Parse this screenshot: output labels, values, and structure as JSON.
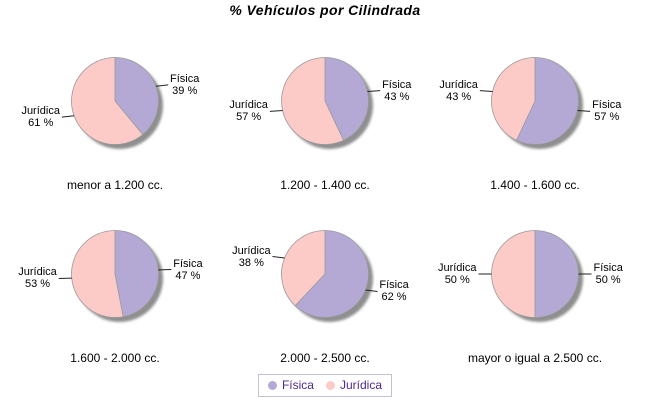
{
  "chart_data": {
    "type": "pie",
    "title": "% Vehículos por Cilindrada",
    "layout": {
      "rows": 2,
      "cols": 3,
      "legend_position": "bottom-center",
      "grid": false
    },
    "value_suffix": " %",
    "series": [
      {
        "name": "Física",
        "key": "fisica",
        "color": "#b4a9d4"
      },
      {
        "name": "Jurídica",
        "key": "juridica",
        "color": "#fccbc8"
      }
    ],
    "shadow_color": "#8f8f8f",
    "outline_color": "#9a9a9a",
    "leader_line_color": "#222222",
    "label_text_color": "#000000",
    "legend_text_color": "#4c2a8e",
    "legend_border_color": "#c2c2cc",
    "pies": [
      {
        "category": "menor a 1.200 cc.",
        "values": [
          39,
          61
        ]
      },
      {
        "category": "1.200 - 1.400 cc.",
        "values": [
          43,
          57
        ]
      },
      {
        "category": "1.400 - 1.600 cc.",
        "values": [
          57,
          43
        ]
      },
      {
        "category": "1.600 - 2.000 cc.",
        "values": [
          47,
          53
        ]
      },
      {
        "category": "2.000 - 2.500 cc.",
        "values": [
          62,
          38
        ]
      },
      {
        "category": "mayor o igual a 2.500 cc.",
        "values": [
          50,
          50
        ]
      }
    ]
  }
}
